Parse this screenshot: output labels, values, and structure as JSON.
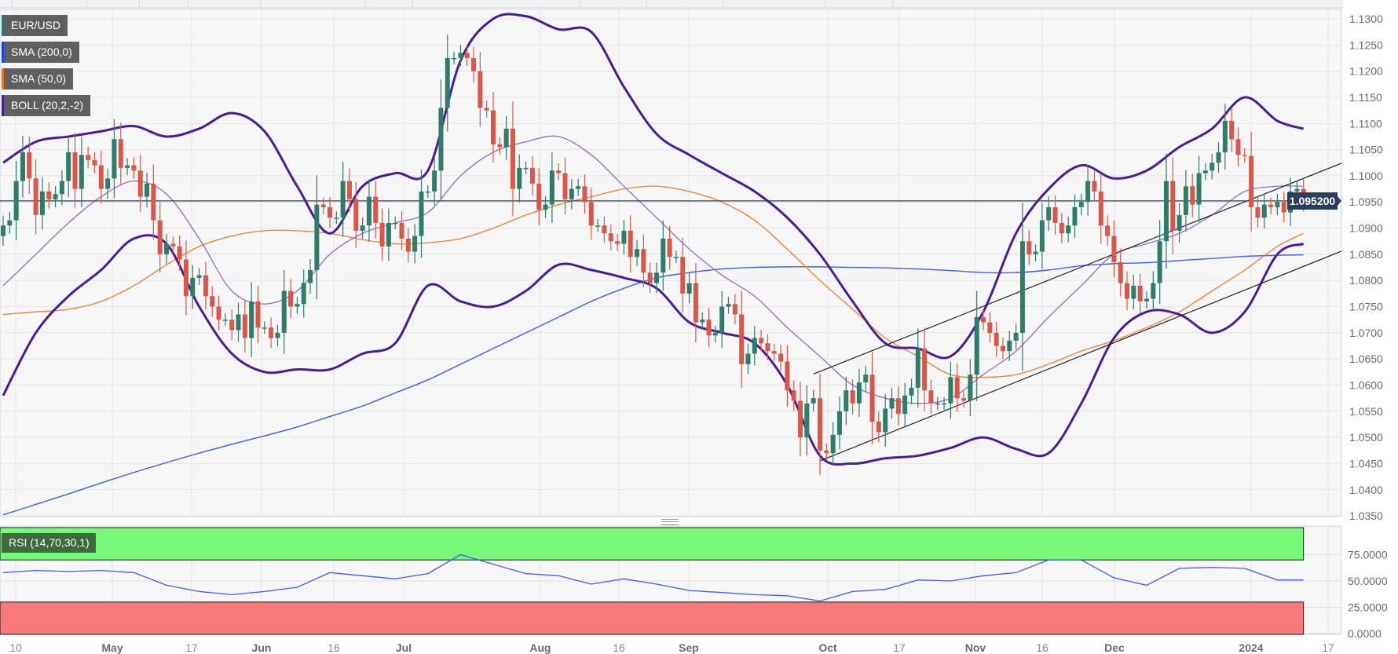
{
  "legend": [
    {
      "label": "EUR/USD",
      "color": "#2e7d6b"
    },
    {
      "label": "SMA (200,0)",
      "color": "#1a3cff"
    },
    {
      "label": "SMA (50,0)",
      "color": "#f26b1d"
    },
    {
      "label": "BOLL (20,2,-2)",
      "color": "#4b1d91"
    }
  ],
  "rsi_legend": "RSI (14,70,30,1)",
  "current_price_label": "1.095200",
  "chart_data": [
    {
      "type": "candlestick",
      "title": "EUR/USD",
      "ylim": [
        1.035,
        1.1315
      ],
      "y_tick_labels": [
        "1.1300",
        "1.1250",
        "1.1200",
        "1.1150",
        "1.1100",
        "1.1050",
        "1.1000",
        "1.0950",
        "1.0900",
        "1.0850",
        "1.0800",
        "1.0750",
        "1.0700",
        "1.0650",
        "1.0600",
        "1.0550",
        "1.0500",
        "1.0450",
        "1.0400",
        "1.0350"
      ],
      "x_tick_labels": [
        "10",
        "May",
        "17",
        "Jun",
        "16",
        "Jul",
        "Aug",
        "16",
        "Sep",
        "Oct",
        "17",
        "Nov",
        "16",
        "Dec",
        "2024",
        "17"
      ],
      "current_price": 1.0952,
      "close": [
        1.0905,
        1.0915,
        1.099,
        1.1045,
        1.0995,
        1.0925,
        1.097,
        1.0955,
        1.0965,
        1.099,
        1.1045,
        1.0975,
        1.104,
        1.103,
        1.102,
        1.0975,
        1.0995,
        1.107,
        1.1015,
        1.102,
        1.101,
        1.096,
        1.0985,
        1.0915,
        1.085,
        1.087,
        1.0865,
        1.084,
        1.077,
        1.0805,
        1.081,
        1.077,
        1.075,
        1.0725,
        1.0725,
        1.0705,
        1.0735,
        1.069,
        1.076,
        1.071,
        1.071,
        1.069,
        1.07,
        1.078,
        1.075,
        1.0755,
        1.0795,
        1.082,
        1.0945,
        1.094,
        1.092,
        1.092,
        1.099,
        1.0955,
        1.0895,
        1.0905,
        1.096,
        1.091,
        1.0865,
        1.091,
        1.091,
        1.088,
        1.0855,
        1.0885,
        1.097,
        1.097,
        1.101,
        1.113,
        1.1225,
        1.1225,
        1.1235,
        1.1225,
        1.12,
        1.113,
        1.1125,
        1.106,
        1.1055,
        1.109,
        1.0975,
        1.1015,
        1.1015,
        1.0985,
        1.0935,
        1.0945,
        1.101,
        1.1005,
        1.0955,
        1.0975,
        1.098,
        1.095,
        1.0905,
        1.0905,
        1.089,
        1.0875,
        1.087,
        1.0895,
        1.0845,
        1.086,
        1.0815,
        1.0795,
        1.0815,
        1.088,
        1.0845,
        1.0845,
        1.0775,
        1.0795,
        1.072,
        1.0725,
        1.0695,
        1.07,
        1.075,
        1.0755,
        1.0735,
        1.064,
        1.066,
        1.069,
        1.068,
        1.0665,
        1.066,
        1.0645,
        1.059,
        1.057,
        1.05,
        1.0565,
        1.0575,
        1.0475,
        1.047,
        1.0505,
        1.055,
        1.059,
        1.0565,
        1.0605,
        1.062,
        1.053,
        1.051,
        1.0555,
        1.0575,
        1.0545,
        1.058,
        1.0595,
        1.067,
        1.059,
        1.0565,
        1.0565,
        1.0565,
        1.0615,
        1.0575,
        1.057,
        1.062,
        1.073,
        1.072,
        1.07,
        1.0675,
        1.0665,
        1.0685,
        1.07,
        1.0875,
        1.085,
        1.0855,
        1.0915,
        1.094,
        1.091,
        1.089,
        1.0905,
        1.094,
        1.095,
        1.099,
        1.097,
        1.0905,
        1.0885,
        1.0835,
        1.0795,
        1.0765,
        1.079,
        1.076,
        1.0765,
        1.0795,
        1.0875,
        1.099,
        1.0895,
        1.0925,
        1.098,
        1.0945,
        1.1005,
        1.101,
        1.1025,
        1.1045,
        1.1105,
        1.107,
        1.104,
        1.1038,
        1.094,
        1.092,
        1.0945,
        1.094,
        1.095,
        1.093,
        1.097,
        1.0975,
        1.0952
      ],
      "indicator_sample_bars": [
        0,
        5,
        10,
        15,
        20,
        25,
        30,
        35,
        40,
        45,
        50,
        55,
        60,
        65,
        70,
        75,
        80,
        85,
        90,
        95,
        100,
        105,
        110,
        115,
        120,
        125,
        130,
        135,
        140,
        145,
        150,
        155,
        160,
        165,
        170,
        175,
        180,
        185,
        190,
        195,
        199
      ],
      "series": [
        {
          "name": "SMA (200,0)",
          "color": "#3b5bff",
          "values": [
            1.0352,
            1.0372,
            1.0392,
            1.0413,
            1.0433,
            1.0452,
            1.047,
            1.0487,
            1.0503,
            1.052,
            1.054,
            1.056,
            1.0585,
            1.061,
            1.064,
            1.067,
            1.07,
            1.073,
            1.076,
            1.0785,
            1.0805,
            1.0815,
            1.0822,
            1.0825,
            1.0826,
            1.0826,
            1.0825,
            1.0824,
            1.0822,
            1.0819,
            1.0815,
            1.0815,
            1.082,
            1.0828,
            1.0832,
            1.0834,
            1.0838,
            1.0842,
            1.0846,
            1.0848,
            1.0849
          ]
        },
        {
          "name": "SMA (50,0)",
          "color": "#f57f2e",
          "values": [
            1.0735,
            1.074,
            1.0745,
            1.076,
            1.079,
            1.083,
            1.0865,
            1.0885,
            1.0895,
            1.0895,
            1.089,
            1.0878,
            1.087,
            1.0872,
            1.088,
            1.09,
            1.0925,
            1.0945,
            1.096,
            1.0975,
            1.098,
            1.097,
            1.095,
            1.0915,
            1.086,
            1.08,
            1.0745,
            1.069,
            1.0655,
            1.062,
            1.0615,
            1.062,
            1.064,
            1.0665,
            1.0685,
            1.071,
            1.074,
            1.078,
            1.082,
            1.0865,
            1.089
          ]
        },
        {
          "name": "BOLL middle",
          "color": "#8a63c9",
          "values": [
            1.079,
            1.085,
            1.091,
            1.096,
            1.099,
            1.0965,
            1.088,
            1.078,
            1.0755,
            1.078,
            1.085,
            1.089,
            1.091,
            1.093,
            1.1,
            1.1045,
            1.1065,
            1.1075,
            1.104,
            1.098,
            1.092,
            1.086,
            1.081,
            1.077,
            1.071,
            1.0655,
            1.06,
            1.0575,
            1.0565,
            1.0575,
            1.062,
            1.0665,
            1.073,
            1.079,
            1.085,
            1.087,
            1.089,
            1.0925,
            1.097,
            1.098,
            1.098
          ]
        },
        {
          "name": "BOLL upper",
          "color": "#4b1d91",
          "values": [
            1.1025,
            1.1065,
            1.1075,
            1.1085,
            1.1095,
            1.1075,
            1.109,
            1.112,
            1.1085,
            1.098,
            1.089,
            1.098,
            1.1005,
            1.101,
            1.122,
            1.13,
            1.1305,
            1.128,
            1.1275,
            1.117,
            1.108,
            1.104,
            1.1005,
            1.097,
            1.092,
            1.085,
            1.076,
            1.068,
            1.067,
            1.0655,
            1.074,
            1.089,
            1.0975,
            1.102,
            1.0995,
            1.101,
            1.1055,
            1.109,
            1.115,
            1.1105,
            1.109
          ]
        },
        {
          "name": "BOLL lower",
          "color": "#4b1d91",
          "values": [
            1.058,
            1.07,
            1.077,
            1.082,
            1.088,
            1.087,
            1.075,
            1.066,
            1.0625,
            1.063,
            1.063,
            1.066,
            1.068,
            1.079,
            1.076,
            1.075,
            1.078,
            1.083,
            1.082,
            1.0805,
            1.0785,
            1.072,
            1.07,
            1.068,
            1.06,
            1.0465,
            1.045,
            1.046,
            1.0465,
            1.048,
            1.05,
            1.0478,
            1.047,
            1.0565,
            1.069,
            1.074,
            1.0735,
            1.07,
            1.074,
            1.085,
            1.087
          ]
        }
      ],
      "trendlines": [
        {
          "name": "channel upper",
          "from": [
            124,
            1.0621
          ],
          "to": [
            205,
            1.1024
          ]
        },
        {
          "name": "channel lower",
          "from": [
            125,
            1.0455
          ],
          "to": [
            205,
            1.0856
          ]
        }
      ],
      "colors": {
        "up": "#2e7d6b",
        "down": "#d9574a",
        "price_line": "#2b3f5c",
        "trendline": "#222222"
      }
    },
    {
      "type": "line",
      "title": "RSI (14,70,30,1)",
      "ylim": [
        0,
        100
      ],
      "y_tick_labels": [
        "75.0000",
        "50.0000",
        "25.0000",
        "0.0000"
      ],
      "overbought": 70,
      "oversold": 30,
      "overbought_color": "#78f878",
      "oversold_color": "#f97a7a",
      "line_color": "#3f5bff",
      "sample_bars": [
        0,
        5,
        10,
        15,
        20,
        25,
        30,
        35,
        40,
        45,
        50,
        55,
        60,
        65,
        70,
        75,
        80,
        85,
        90,
        95,
        100,
        105,
        110,
        115,
        120,
        125,
        130,
        135,
        140,
        145,
        150,
        155,
        160,
        165,
        170,
        175,
        180,
        185,
        190,
        195,
        199
      ],
      "values": [
        58,
        60,
        59,
        60,
        58,
        46,
        40,
        37,
        40,
        44,
        58,
        55,
        52,
        57,
        75,
        66,
        57,
        55,
        47,
        52,
        47,
        41,
        39,
        37,
        36,
        31,
        40,
        42,
        51,
        50,
        55,
        58,
        70,
        70,
        53,
        46,
        62,
        63,
        62,
        51,
        51
      ]
    }
  ]
}
